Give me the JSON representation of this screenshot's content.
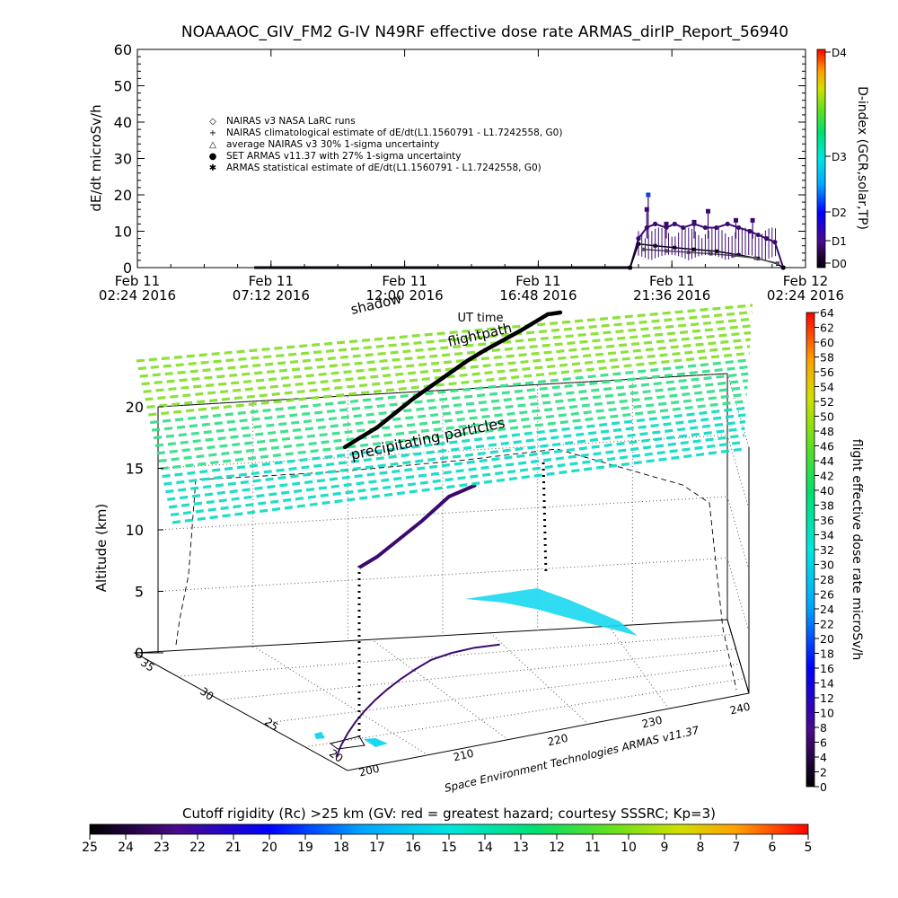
{
  "title": "NOAAAOC_GIV_FM2 G-IV    N49RF   effective dose rate ARMAS_dirIP_Report_56940",
  "chart_data": [
    {
      "type": "scatter",
      "panel": "time-series",
      "ylabel": "dE/dt microSv/h",
      "xlabel": "UT time",
      "ylim": [
        0,
        60
      ],
      "yticks": [
        "0",
        "10",
        "20",
        "30",
        "40",
        "50",
        "60"
      ],
      "xticks": [
        {
          "day": "Feb 11",
          "time": "02:24 2016"
        },
        {
          "day": "Feb 11",
          "time": "07:12 2016"
        },
        {
          "day": "Feb 11",
          "time": "12:00 2016"
        },
        {
          "day": "Feb 11",
          "time": "16:48 2016"
        },
        {
          "day": "Feb 11",
          "time": "21:36 2016"
        },
        {
          "day": "Feb 12",
          "time": "02:24 2016"
        }
      ],
      "xlim_hours": [
        0,
        24
      ],
      "legend": [
        "NAIRAS v3 NASA LaRC runs",
        "NAIRAS climatological estimate of dE/dt(L1.1560791 - L1.7242558, G0)",
        "average NAIRAS v3 30% 1-sigma uncertainty",
        "SET ARMAS v11.37 with 27% 1-sigma uncertainty",
        "ARMAS statistical estimate of dE/dt(L1.1560791 - L1.7242558, G0)"
      ],
      "legend_placement": "upper-left",
      "series": [
        {
          "name": "SET ARMAS v11.37 with 27% 1-sigma uncertainty",
          "x": [
            4.2,
            6,
            8,
            10,
            12,
            14,
            16,
            17.7,
            18.0,
            18.3,
            18.6,
            19.0,
            19.3,
            19.6,
            20.0,
            20.4,
            20.8,
            21.2,
            21.6,
            22.0,
            22.3,
            22.6,
            22.9,
            23.2
          ],
          "y": [
            0,
            0,
            0,
            0,
            0,
            0,
            0,
            0,
            8,
            11,
            12,
            11,
            12,
            11,
            12,
            11,
            11,
            12,
            11,
            10,
            9,
            8,
            7,
            0
          ]
        },
        {
          "name": "ARMAS statistical estimate of dE/dt(L1.1560791 - L1.7242558, G0)",
          "x": [
            4.2,
            8,
            12,
            16,
            17.7,
            18.0,
            18.6,
            19.3,
            20.0,
            20.8,
            21.6,
            22.3,
            23.0,
            23.2
          ],
          "y": [
            0,
            0,
            0,
            0,
            0,
            6.5,
            6,
            5.5,
            5,
            4.5,
            3.5,
            2.5,
            1,
            0
          ]
        },
        {
          "name": "NAIRAS v3 NASA LaRC runs",
          "x": [
            18.2,
            19.0,
            19.8,
            20.6,
            21.4,
            22.2,
            23.0
          ],
          "y": [
            5,
            4.6,
            4.2,
            3.8,
            3.3,
            2.6,
            1.2
          ]
        }
      ],
      "spikes": [
        {
          "x": 18.35,
          "y": 20
        },
        {
          "x": 18.3,
          "y": 16
        },
        {
          "x": 20.5,
          "y": 15.5
        },
        {
          "x": 21.5,
          "y": 13
        },
        {
          "x": 22.1,
          "y": 13
        },
        {
          "x": 20.0,
          "y": 12.5
        },
        {
          "x": 19.0,
          "y": 12
        }
      ],
      "colorbar": {
        "label": "D-index (GCR,solar,TP)",
        "ticks": [
          "D0",
          "D1",
          "D2",
          "D3",
          "D4"
        ]
      }
    },
    {
      "type": "scatter",
      "panel": "3d-flight-path",
      "zlabel": "Altitude (km)",
      "zticks": [
        "0",
        "5",
        "10",
        "15",
        "20"
      ],
      "zlim": [
        0,
        20
      ],
      "lat_ticks": [
        "20",
        "25",
        "30",
        "35"
      ],
      "lon_ticks": [
        "200",
        "210",
        "220",
        "230",
        "240"
      ],
      "annotations": [
        "flightpath",
        "shadow",
        "precipitating particles"
      ],
      "credit": "Space Environment Technologies ARMAS v11.37",
      "series": [
        {
          "name": "flightpath",
          "lon": [
            201,
            203,
            205,
            207,
            209,
            211,
            213,
            215,
            217,
            219,
            221,
            223,
            225
          ],
          "lat": [
            21,
            22.5,
            24,
            25.5,
            27,
            28.5,
            30,
            31.5,
            33,
            34.5,
            35.5,
            36.2,
            36.5
          ],
          "alt_km": [
            13.3,
            14.0,
            14.6,
            15.2,
            15.8,
            16.4,
            17.0,
            17.5,
            18.0,
            18.6,
            19.2,
            19.6,
            19.8
          ]
        }
      ],
      "colorbar": {
        "label": "flight effective dose rate microSv/h",
        "min": 0,
        "max": 64,
        "ticks": [
          "0",
          "2",
          "4",
          "6",
          "8",
          "10",
          "12",
          "14",
          "16",
          "18",
          "20",
          "22",
          "24",
          "26",
          "28",
          "30",
          "32",
          "34",
          "36",
          "38",
          "40",
          "42",
          "44",
          "46",
          "48",
          "50",
          "52",
          "54",
          "56",
          "58",
          "60",
          "62",
          "64"
        ]
      }
    },
    {
      "type": "heatmap",
      "panel": "cutoff-rigidity-colorbar",
      "label": "Cutoff rigidity (Rc) >25 km (GV: red = greatest hazard; courtesy SSSRC; Kp=3)",
      "ticks": [
        "25",
        "24",
        "23",
        "22",
        "21",
        "20",
        "19",
        "18",
        "17",
        "16",
        "15",
        "14",
        "13",
        "12",
        "11",
        "10",
        "9",
        "8",
        "7",
        "6",
        "5"
      ]
    }
  ]
}
